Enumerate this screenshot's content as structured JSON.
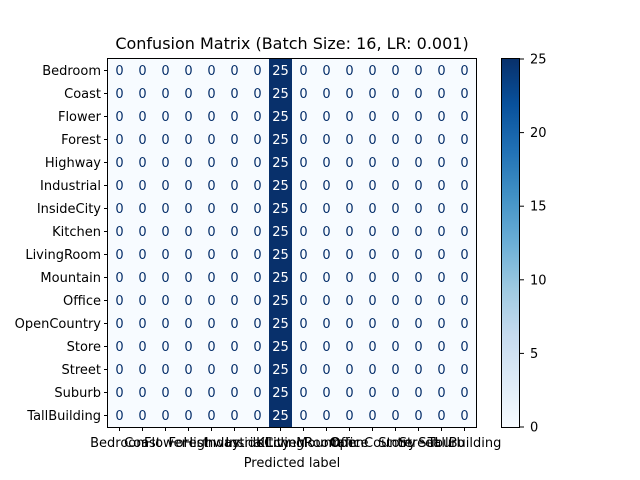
{
  "chart_data": {
    "type": "heatmap",
    "title": "Confusion Matrix (Batch Size: 16, LR: 0.001)",
    "xlabel": "Predicted label",
    "ylabel": "",
    "row_labels": [
      "Bedroom",
      "Coast",
      "Flower",
      "Forest",
      "Highway",
      "Industrial",
      "InsideCity",
      "Kitchen",
      "LivingRoom",
      "Mountain",
      "Office",
      "OpenCountry",
      "Store",
      "Street",
      "Suburb",
      "TallBuilding"
    ],
    "col_labels": [
      "Bedroom",
      "Coast",
      "Flower",
      "Forest",
      "Highway",
      "Industrial",
      "InsideCity",
      "Kitchen",
      "LivingRoom",
      "Mountain",
      "Office",
      "OpenCountry",
      "Store",
      "Street",
      "Suburb",
      "TallBuilding"
    ],
    "values": [
      [
        0,
        0,
        0,
        0,
        0,
        0,
        0,
        25,
        0,
        0,
        0,
        0,
        0,
        0,
        0,
        0
      ],
      [
        0,
        0,
        0,
        0,
        0,
        0,
        0,
        25,
        0,
        0,
        0,
        0,
        0,
        0,
        0,
        0
      ],
      [
        0,
        0,
        0,
        0,
        0,
        0,
        0,
        25,
        0,
        0,
        0,
        0,
        0,
        0,
        0,
        0
      ],
      [
        0,
        0,
        0,
        0,
        0,
        0,
        0,
        25,
        0,
        0,
        0,
        0,
        0,
        0,
        0,
        0
      ],
      [
        0,
        0,
        0,
        0,
        0,
        0,
        0,
        25,
        0,
        0,
        0,
        0,
        0,
        0,
        0,
        0
      ],
      [
        0,
        0,
        0,
        0,
        0,
        0,
        0,
        25,
        0,
        0,
        0,
        0,
        0,
        0,
        0,
        0
      ],
      [
        0,
        0,
        0,
        0,
        0,
        0,
        0,
        25,
        0,
        0,
        0,
        0,
        0,
        0,
        0,
        0
      ],
      [
        0,
        0,
        0,
        0,
        0,
        0,
        0,
        25,
        0,
        0,
        0,
        0,
        0,
        0,
        0,
        0
      ],
      [
        0,
        0,
        0,
        0,
        0,
        0,
        0,
        25,
        0,
        0,
        0,
        0,
        0,
        0,
        0,
        0
      ],
      [
        0,
        0,
        0,
        0,
        0,
        0,
        0,
        25,
        0,
        0,
        0,
        0,
        0,
        0,
        0,
        0
      ],
      [
        0,
        0,
        0,
        0,
        0,
        0,
        0,
        25,
        0,
        0,
        0,
        0,
        0,
        0,
        0,
        0
      ],
      [
        0,
        0,
        0,
        0,
        0,
        0,
        0,
        25,
        0,
        0,
        0,
        0,
        0,
        0,
        0,
        0
      ],
      [
        0,
        0,
        0,
        0,
        0,
        0,
        0,
        25,
        0,
        0,
        0,
        0,
        0,
        0,
        0,
        0
      ],
      [
        0,
        0,
        0,
        0,
        0,
        0,
        0,
        25,
        0,
        0,
        0,
        0,
        0,
        0,
        0,
        0
      ],
      [
        0,
        0,
        0,
        0,
        0,
        0,
        0,
        25,
        0,
        0,
        0,
        0,
        0,
        0,
        0,
        0
      ],
      [
        0,
        0,
        0,
        0,
        0,
        0,
        0,
        25,
        0,
        0,
        0,
        0,
        0,
        0,
        0,
        0
      ]
    ],
    "colorbar": {
      "min": 0,
      "max": 25,
      "ticks": [
        0,
        5,
        10,
        15,
        20,
        25
      ]
    },
    "colormap": {
      "low": "#f7fbff",
      "high": "#08306b"
    },
    "text_color_low": "#08306b",
    "text_color_high": "#ffffff"
  }
}
